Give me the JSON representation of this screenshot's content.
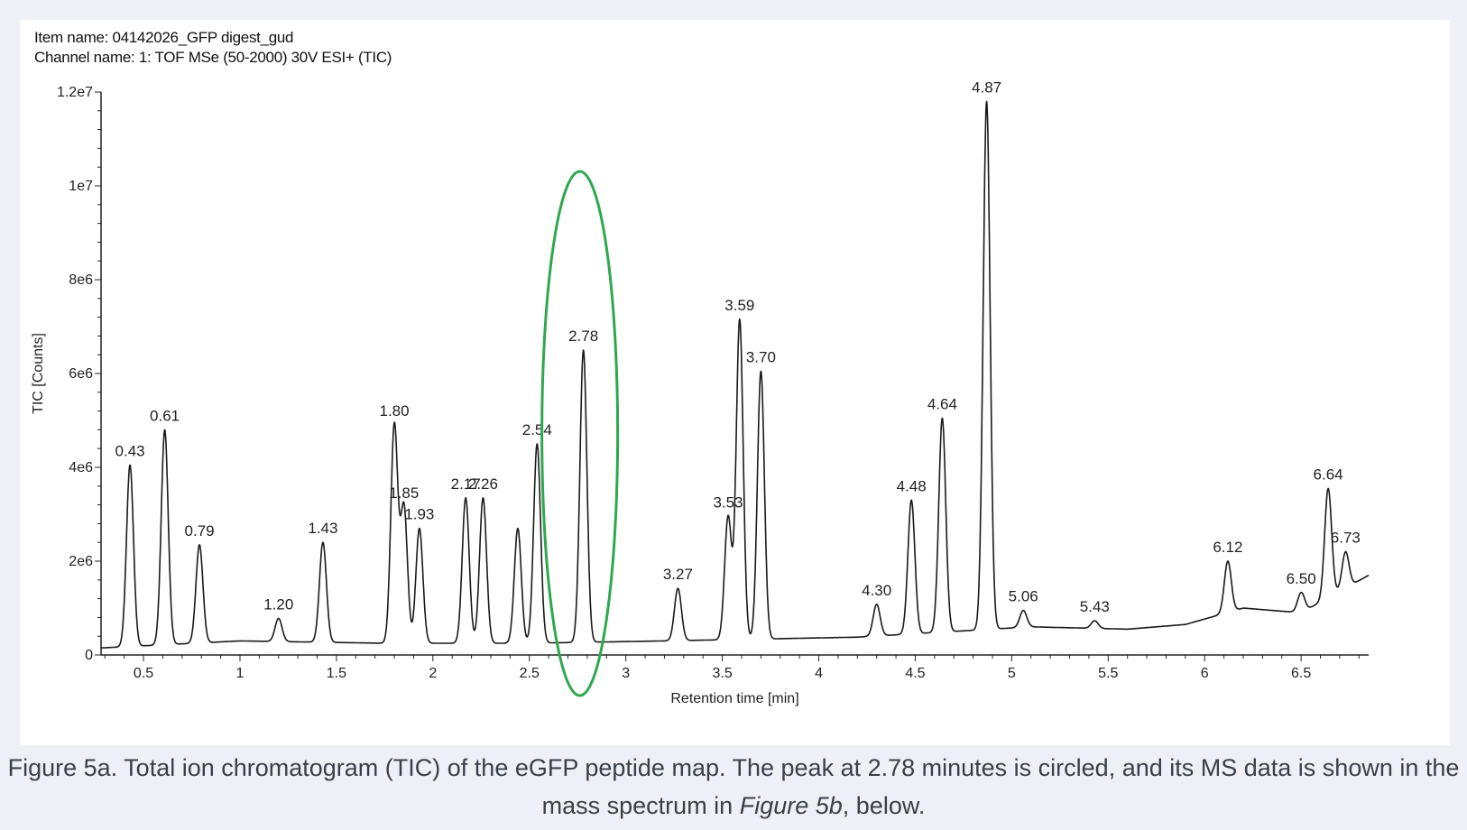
{
  "header": {
    "item_name": "Item name: 04142026_GFP digest_gud",
    "channel_name": "Channel name: 1: TOF MSe (50-2000) 30V ESI+ (TIC)"
  },
  "caption": {
    "prefix": "Figure 5a. Total ion chromatogram (TIC) of the eGFP peptide map. The peak at 2.78 minutes is circled, and its MS data is shown in the mass spectrum in ",
    "ref": "Figure 5b",
    "suffix": ", below."
  },
  "colors": {
    "trace": "#1a1a1a",
    "highlight": "#2ea84f",
    "axis": "#222222"
  },
  "chart_data": {
    "type": "line",
    "xlabel": "Retention time [min]",
    "ylabel": "TIC [Counts]",
    "xlim": [
      0.28,
      6.85
    ],
    "ylim": [
      0,
      12000000
    ],
    "x_ticks": [
      0.5,
      1,
      1.5,
      2,
      2.5,
      3,
      3.5,
      4,
      4.5,
      5,
      5.5,
      6,
      6.5
    ],
    "x_tick_labels": [
      "0.5",
      "1",
      "1.5",
      "2",
      "2.5",
      "3",
      "3.5",
      "4",
      "4.5",
      "5",
      "5.5",
      "6",
      "6.5"
    ],
    "y_ticks": [
      0,
      2000000,
      4000000,
      6000000,
      8000000,
      10000000,
      12000000
    ],
    "y_tick_labels": [
      "0",
      "2e6",
      "4e6",
      "6e6",
      "8e6",
      "1e7",
      "1.2e7"
    ],
    "baseline": [
      [
        0.28,
        150000
      ],
      [
        1.0,
        300000
      ],
      [
        1.75,
        250000
      ],
      [
        2.5,
        250000
      ],
      [
        3.2,
        300000
      ],
      [
        4.2,
        380000
      ],
      [
        5.1,
        600000
      ],
      [
        5.6,
        550000
      ],
      [
        5.9,
        650000
      ],
      [
        6.2,
        1000000
      ],
      [
        6.5,
        900000
      ],
      [
        6.85,
        1700000
      ]
    ],
    "peaks": [
      {
        "rt": 0.43,
        "height": 4050000,
        "label": "0.43"
      },
      {
        "rt": 0.61,
        "height": 4800000,
        "label": "0.61"
      },
      {
        "rt": 0.79,
        "height": 2350000,
        "label": "0.79"
      },
      {
        "rt": 1.2,
        "height": 780000,
        "label": "1.20"
      },
      {
        "rt": 1.43,
        "height": 2400000,
        "label": "1.43"
      },
      {
        "rt": 1.8,
        "height": 4900000,
        "label": "1.80"
      },
      {
        "rt": 1.85,
        "height": 3150000,
        "label": "1.85"
      },
      {
        "rt": 1.93,
        "height": 2700000,
        "label": "1.93"
      },
      {
        "rt": 2.17,
        "height": 3350000,
        "label": "2.17"
      },
      {
        "rt": 2.26,
        "height": 3350000,
        "label": "2.26"
      },
      {
        "rt": 2.44,
        "height": 2700000,
        "label": ""
      },
      {
        "rt": 2.54,
        "height": 4500000,
        "label": "2.54"
      },
      {
        "rt": 2.78,
        "height": 6500000,
        "label": "2.78"
      },
      {
        "rt": 3.27,
        "height": 1420000,
        "label": "3.27"
      },
      {
        "rt": 3.53,
        "height": 2950000,
        "label": "3.53"
      },
      {
        "rt": 3.59,
        "height": 7150000,
        "label": "3.59"
      },
      {
        "rt": 3.7,
        "height": 6050000,
        "label": "3.70"
      },
      {
        "rt": 4.3,
        "height": 1080000,
        "label": "4.30"
      },
      {
        "rt": 4.48,
        "height": 3300000,
        "label": "4.48"
      },
      {
        "rt": 4.64,
        "height": 5050000,
        "label": "4.64"
      },
      {
        "rt": 4.87,
        "height": 11800000,
        "label": "4.87"
      },
      {
        "rt": 5.06,
        "height": 950000,
        "label": "5.06"
      },
      {
        "rt": 5.43,
        "height": 730000,
        "label": "5.43"
      },
      {
        "rt": 6.12,
        "height": 2000000,
        "label": "6.12"
      },
      {
        "rt": 6.5,
        "height": 1330000,
        "label": "6.50"
      },
      {
        "rt": 6.64,
        "height": 3550000,
        "label": "6.64"
      },
      {
        "rt": 6.73,
        "height": 2200000,
        "label": "6.73"
      }
    ],
    "highlighted_peak_rt": 2.78,
    "grid": false,
    "legend": "none"
  }
}
